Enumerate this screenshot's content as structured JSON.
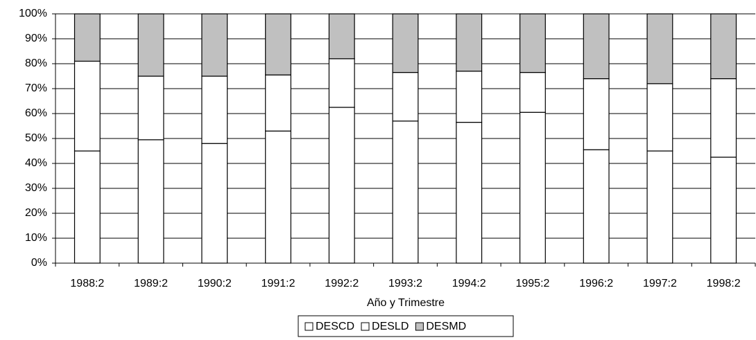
{
  "chart_data": {
    "type": "stacked_bar_percent",
    "x_label": "Año y Trimestre",
    "categories": [
      "1988:2",
      "1989:2",
      "1990:2",
      "1991:2",
      "1992:2",
      "1993:2",
      "1994:2",
      "1995:2",
      "1996:2",
      "1997:2",
      "1998:2"
    ],
    "series": [
      {
        "name": "DESCD",
        "color": "#ffffff",
        "values": [
          45,
          49.5,
          48,
          53,
          62.5,
          57,
          56.5,
          60.5,
          45.5,
          45,
          42.5
        ]
      },
      {
        "name": "DESLD",
        "color": "#ffffff",
        "values": [
          36,
          25.5,
          27,
          22.5,
          19.5,
          19.5,
          20.5,
          16,
          28.5,
          27,
          31.5
        ]
      },
      {
        "name": "DESMD",
        "color": "#c0c0c0",
        "values": [
          19,
          25,
          25,
          24.5,
          18,
          23.5,
          23,
          23.5,
          26,
          28,
          26
        ]
      }
    ],
    "ylim": [
      0,
      100
    ],
    "yticks": [
      {
        "value": 0,
        "label": "0%"
      },
      {
        "value": 10,
        "label": "10%"
      },
      {
        "value": 20,
        "label": "20%"
      },
      {
        "value": 30,
        "label": "30%"
      },
      {
        "value": 40,
        "label": "40%"
      },
      {
        "value": 50,
        "label": "50%"
      },
      {
        "value": 60,
        "label": "60%"
      },
      {
        "value": 70,
        "label": "70%"
      },
      {
        "value": 80,
        "label": "80%"
      },
      {
        "value": 90,
        "label": "90%"
      },
      {
        "value": 100,
        "label": "100%"
      }
    ],
    "grid": true
  }
}
